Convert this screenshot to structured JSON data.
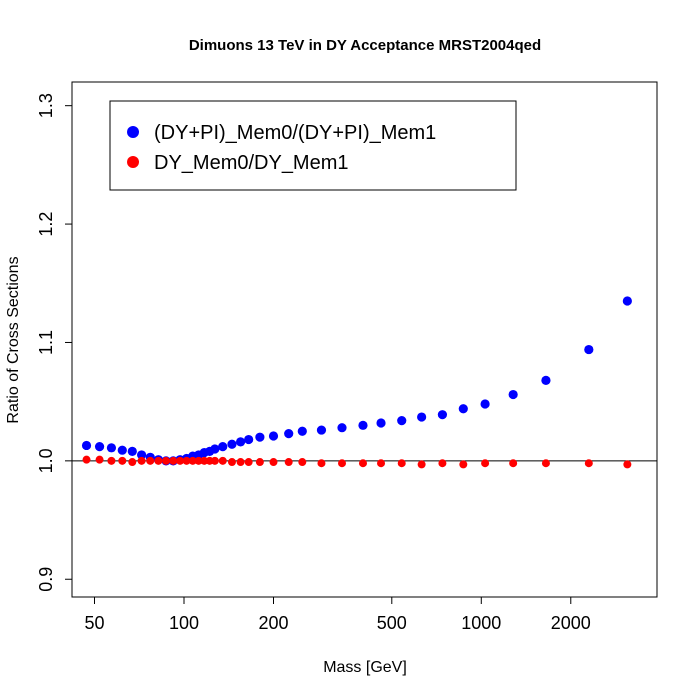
{
  "chart_data": {
    "type": "scatter",
    "title": "Dimuons 13 TeV in DY Acceptance MRST2004qed",
    "xlabel": "Mass [GeV]",
    "ylabel": "Ratio of Cross Sections",
    "x_scale": "log",
    "xlim": [
      42,
      3900
    ],
    "ylim": [
      0.885,
      1.32
    ],
    "x_ticks": [
      50,
      100,
      200,
      500,
      1000,
      2000
    ],
    "y_ticks": [
      0.9,
      1.0,
      1.1,
      1.2,
      1.3
    ],
    "reference_line_y": 1.0,
    "legend_position": "top-left",
    "series": [
      {
        "name": "(DY+PI)_Mem0/(DY+PI)_Mem1",
        "color": "#0000ff",
        "x": [
          47,
          52,
          57,
          62,
          67,
          72,
          77,
          82,
          87,
          92,
          97,
          102,
          107,
          112,
          117,
          122,
          127,
          135,
          145,
          155,
          165,
          180,
          200,
          225,
          250,
          290,
          340,
          400,
          460,
          540,
          630,
          740,
          870,
          1030,
          1280,
          1650,
          2300,
          3100
        ],
        "y": [
          1.013,
          1.012,
          1.011,
          1.009,
          1.008,
          1.005,
          1.003,
          1.001,
          1.0,
          1.0,
          1.001,
          1.002,
          1.004,
          1.005,
          1.007,
          1.008,
          1.01,
          1.012,
          1.014,
          1.016,
          1.018,
          1.02,
          1.021,
          1.023,
          1.025,
          1.026,
          1.028,
          1.03,
          1.032,
          1.034,
          1.037,
          1.039,
          1.044,
          1.048,
          1.056,
          1.068,
          1.094,
          1.135
        ]
      },
      {
        "name": "DY_Mem0/DY_Mem1",
        "color": "#ff0000",
        "x": [
          47,
          52,
          57,
          62,
          67,
          72,
          77,
          82,
          87,
          92,
          97,
          102,
          107,
          112,
          117,
          122,
          127,
          135,
          145,
          155,
          165,
          180,
          200,
          225,
          250,
          290,
          340,
          400,
          460,
          540,
          630,
          740,
          870,
          1030,
          1280,
          1650,
          2300,
          3100
        ],
        "y": [
          1.001,
          1.001,
          1.0,
          1.0,
          0.999,
          1.0,
          1.0,
          1.0,
          1.0,
          1.0,
          1.0,
          1.0,
          1.0,
          1.0,
          1.0,
          1.0,
          1.0,
          1.0,
          0.999,
          0.999,
          0.999,
          0.999,
          0.999,
          0.999,
          0.999,
          0.998,
          0.998,
          0.998,
          0.998,
          0.998,
          0.997,
          0.998,
          0.997,
          0.998,
          0.998,
          0.998,
          0.998,
          0.997
        ]
      }
    ]
  }
}
